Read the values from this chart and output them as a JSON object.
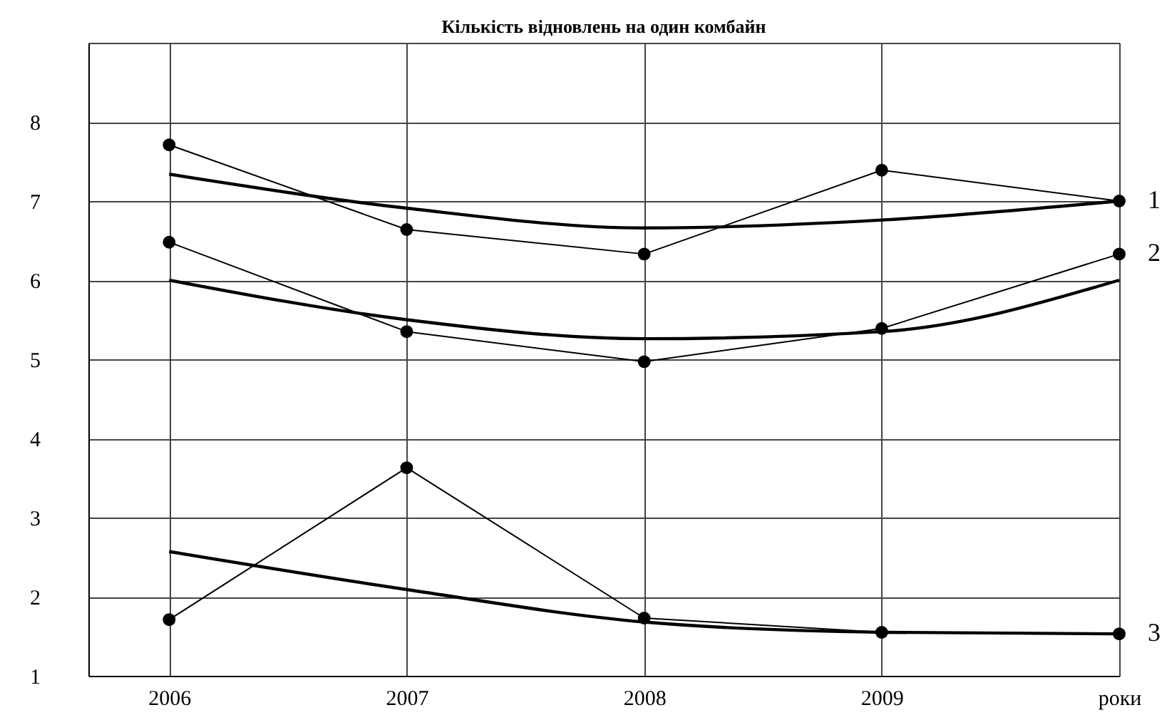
{
  "chart_data": {
    "type": "line",
    "title": "Кількість відновлень на один комбайн",
    "xlabel": "роки",
    "x": [
      2006,
      2007,
      2008,
      2009,
      2010
    ],
    "xlim": [
      2005.66,
      2010
    ],
    "xticks": [
      2006,
      2007,
      2008,
      2009,
      {
        "value": 2010,
        "label": null
      }
    ],
    "ylim": [
      1,
      9
    ],
    "yticks": [
      1,
      2,
      3,
      4,
      5,
      6,
      7,
      8,
      {
        "value": 9,
        "label": null
      }
    ],
    "grid": true,
    "series": [
      {
        "name": "1",
        "color": "#000000",
        "marker": "circle",
        "values": [
          7.71,
          6.64,
          6.33,
          7.39,
          7.0
        ]
      },
      {
        "color": "#000000",
        "marker": "none",
        "values": [
          7.34,
          6.91,
          6.66,
          6.76,
          7.0
        ]
      },
      {
        "name": "2",
        "color": "#000000",
        "marker": "circle",
        "values": [
          6.48,
          5.35,
          4.97,
          5.39,
          6.33
        ]
      },
      {
        "color": "#000000",
        "marker": "none",
        "values": [
          6.0,
          5.5,
          5.26,
          5.35,
          6.0
        ]
      },
      {
        "name": "3",
        "color": "#000000",
        "marker": "circle",
        "values": [
          1.71,
          3.63,
          1.73,
          1.55,
          1.53
        ]
      },
      {
        "color": "#000000",
        "marker": "none",
        "values": [
          2.57,
          2.09,
          1.68,
          1.55,
          1.53
        ]
      }
    ]
  }
}
